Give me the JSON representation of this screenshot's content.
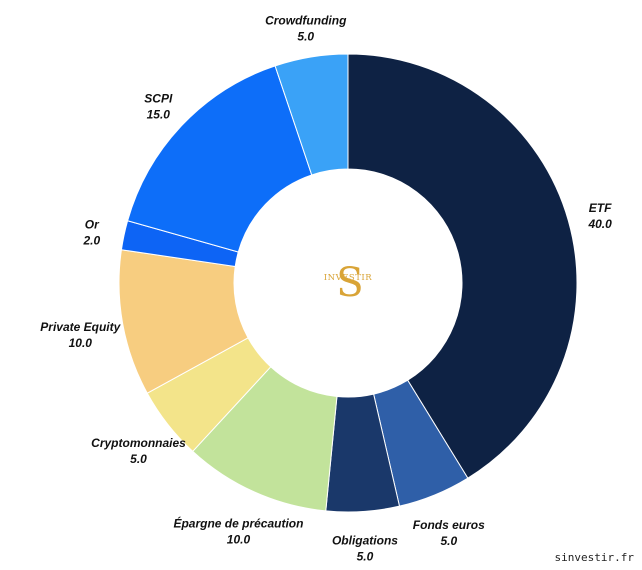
{
  "chart_data": {
    "type": "pie",
    "donut": true,
    "title": "",
    "slices": [
      {
        "label": "ETF",
        "value": 40.0,
        "display": "40.0",
        "color": "#0e2244"
      },
      {
        "label": "Fonds euros",
        "value": 5.0,
        "display": "5.0",
        "color": "#2f5fa8"
      },
      {
        "label": "Obligations",
        "value": 5.0,
        "display": "5.0",
        "color": "#1a386a"
      },
      {
        "label": "Épargne de précaution",
        "value": 10.0,
        "display": "10.0",
        "color": "#c2e39b"
      },
      {
        "label": "Cryptomonnaies",
        "value": 5.0,
        "display": "5.0",
        "color": "#f3e48a"
      },
      {
        "label": "Private Equity",
        "value": 10.0,
        "display": "10.0",
        "color": "#f7cd80"
      },
      {
        "label": "Or",
        "value": 2.0,
        "display": "2.0",
        "color": "#0d64f5"
      },
      {
        "label": "SCPI",
        "value": 15.0,
        "display": "15.0",
        "color": "#0d6ef9"
      },
      {
        "label": "Crowdfunding",
        "value": 5.0,
        "display": "5.0",
        "color": "#3aa2f7"
      }
    ]
  },
  "logo": {
    "letter": "S",
    "text": "INVESTIR"
  },
  "watermark": "sinvestir.fr"
}
